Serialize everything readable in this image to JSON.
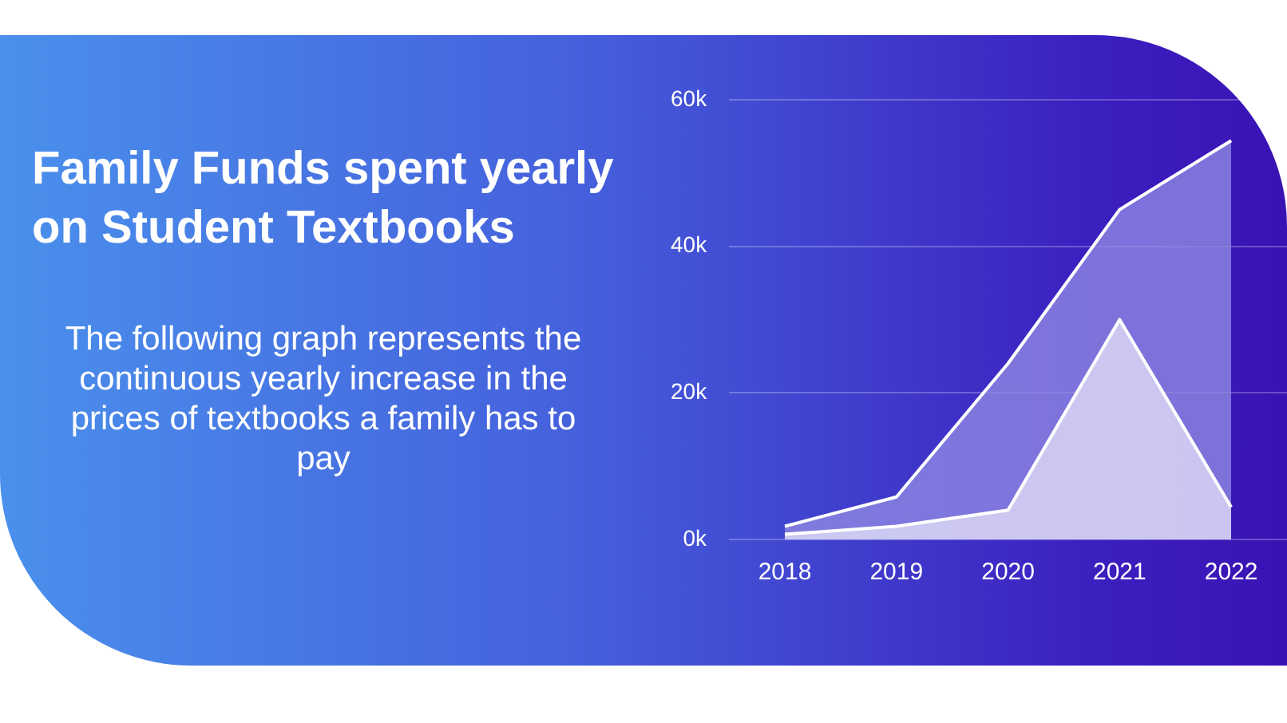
{
  "chart_data": {
    "type": "area",
    "title": "Family Funds spent yearly on Student Textbooks",
    "subtitle": "The following graph represents the continuous yearly increase in the prices of textbooks a family has to pay",
    "categories": [
      "2018",
      "2019",
      "2020",
      "2021",
      "2022"
    ],
    "series": [
      {
        "color": "#8f88e2",
        "values": [
          1.8,
          5.8,
          24,
          45,
          54.4
        ]
      },
      {
        "color": "#dedcf6",
        "values": [
          0.7,
          1.8,
          4,
          30,
          4.4
        ]
      }
    ],
    "ylim": [
      0,
      60
    ],
    "yticks": [
      {
        "value": 0,
        "label": "0k"
      },
      {
        "value": 20,
        "label": "20k"
      },
      {
        "value": 40,
        "label": "40k"
      },
      {
        "value": 60,
        "label": "60k"
      }
    ],
    "grid": "y",
    "legend": false
  }
}
